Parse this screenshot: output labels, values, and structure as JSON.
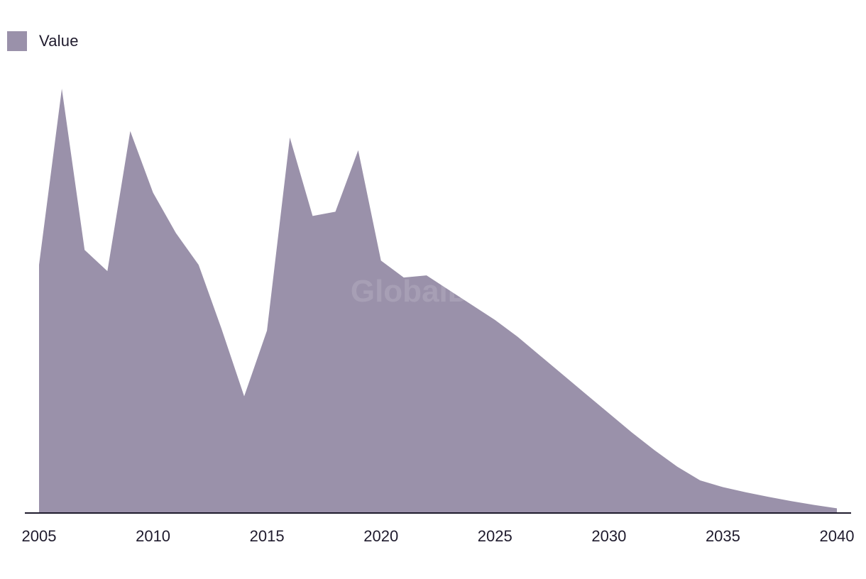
{
  "watermark": "GlobalData",
  "legend": {
    "label": "Value",
    "color": "#9a91aa"
  },
  "chart_data": {
    "type": "area",
    "title": "",
    "xlabel": "",
    "ylabel": "",
    "grid": false,
    "legend_position": "top-left",
    "xlim": [
      2005,
      2040
    ],
    "ylim": [
      0,
      100
    ],
    "x_ticks": [
      2005,
      2010,
      2015,
      2020,
      2025,
      2030,
      2035,
      2040
    ],
    "x": [
      2005,
      2006,
      2007,
      2008,
      2009,
      2010,
      2011,
      2012,
      2013,
      2014,
      2015,
      2016,
      2017,
      2018,
      2019,
      2020,
      2021,
      2022,
      2023,
      2024,
      2025,
      2026,
      2027,
      2028,
      2029,
      2030,
      2031,
      2032,
      2033,
      2034,
      2035,
      2036,
      2037,
      2038,
      2039,
      2040
    ],
    "series": [
      {
        "name": "Value",
        "color": "#9a91aa",
        "values": [
          58.5,
          100,
          62,
          57,
          90,
          75.5,
          66,
          58.5,
          43.5,
          27.5,
          43,
          88.5,
          70,
          71,
          85.5,
          59.5,
          55.5,
          56,
          52.5,
          49,
          45.5,
          41.5,
          37,
          32.5,
          28,
          23.5,
          19,
          14.8,
          10.9,
          7.7,
          6.1,
          4.9,
          3.8,
          2.8,
          1.9,
          1.1
        ]
      }
    ]
  }
}
